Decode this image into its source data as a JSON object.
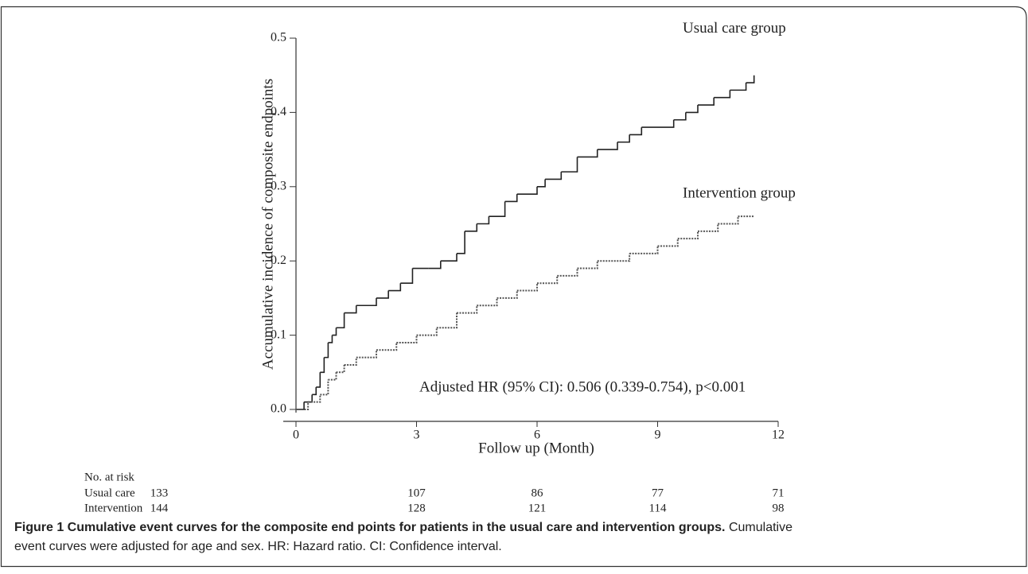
{
  "chart_data": {
    "type": "line",
    "y_label": "Accumulative incidence of composite endpoints",
    "x_label": "Follow up (Month)",
    "xlim": [
      0,
      12
    ],
    "xticks": [
      0,
      3,
      6,
      9,
      12
    ],
    "ylim": [
      0,
      0.5
    ],
    "yticks": [
      {
        "value": 0,
        "label": "0.0"
      },
      0.1,
      0.2,
      0.3,
      0.4,
      0.5
    ],
    "series": [
      {
        "name": "Usual care group",
        "color": "#222222",
        "dash": "solid",
        "x": [
          0,
          0.2,
          0.4,
          0.5,
          0.6,
          0.7,
          0.8,
          0.9,
          1.0,
          1.2,
          1.5,
          2.0,
          2.3,
          2.6,
          2.9,
          3.3,
          3.6,
          4.0,
          4.2,
          4.5,
          4.8,
          5.2,
          5.5,
          6.0,
          6.2,
          6.6,
          7.0,
          7.5,
          8.0,
          8.3,
          8.6,
          9.0,
          9.4,
          9.7,
          10.0,
          10.4,
          10.8,
          11.2,
          11.4
        ],
        "values": [
          0,
          0.01,
          0.02,
          0.03,
          0.05,
          0.07,
          0.09,
          0.1,
          0.11,
          0.13,
          0.14,
          0.15,
          0.16,
          0.17,
          0.19,
          0.19,
          0.2,
          0.21,
          0.24,
          0.25,
          0.26,
          0.28,
          0.29,
          0.3,
          0.31,
          0.32,
          0.34,
          0.35,
          0.36,
          0.37,
          0.38,
          0.38,
          0.39,
          0.4,
          0.41,
          0.42,
          0.43,
          0.44,
          0.45
        ]
      },
      {
        "name": "Intervention group",
        "color": "#555555",
        "dash": "dotted",
        "x": [
          0,
          0.3,
          0.6,
          0.8,
          1.0,
          1.2,
          1.5,
          2.0,
          2.5,
          3.0,
          3.5,
          4.0,
          4.5,
          5.0,
          5.5,
          6.0,
          6.5,
          7.0,
          7.5,
          8.3,
          9.0,
          9.5,
          10.0,
          10.5,
          11.0,
          11.4
        ],
        "values": [
          0,
          0.01,
          0.02,
          0.04,
          0.05,
          0.06,
          0.07,
          0.08,
          0.09,
          0.1,
          0.11,
          0.13,
          0.14,
          0.15,
          0.16,
          0.17,
          0.18,
          0.19,
          0.2,
          0.21,
          0.22,
          0.23,
          0.24,
          0.25,
          0.26,
          0.26
        ]
      }
    ],
    "annotation": "Adjusted HR (95% CI): 0.506 (0.339-0.754), p<0.001",
    "risk_table": {
      "title": "No. at risk",
      "rows": [
        {
          "label": "Usual care",
          "values": [
            133,
            107,
            86,
            77,
            71
          ]
        },
        {
          "label": "Intervention",
          "values": [
            144,
            128,
            121,
            114,
            98
          ]
        }
      ]
    }
  },
  "caption": {
    "label": "Figure 1 Cumulative event curves for the composite end points for patients in the usual care and intervention groups.",
    "line1": "Cumulative",
    "line2": "event curves were adjusted for age and sex. HR: Hazard ratio. CI: Confidence interval."
  }
}
